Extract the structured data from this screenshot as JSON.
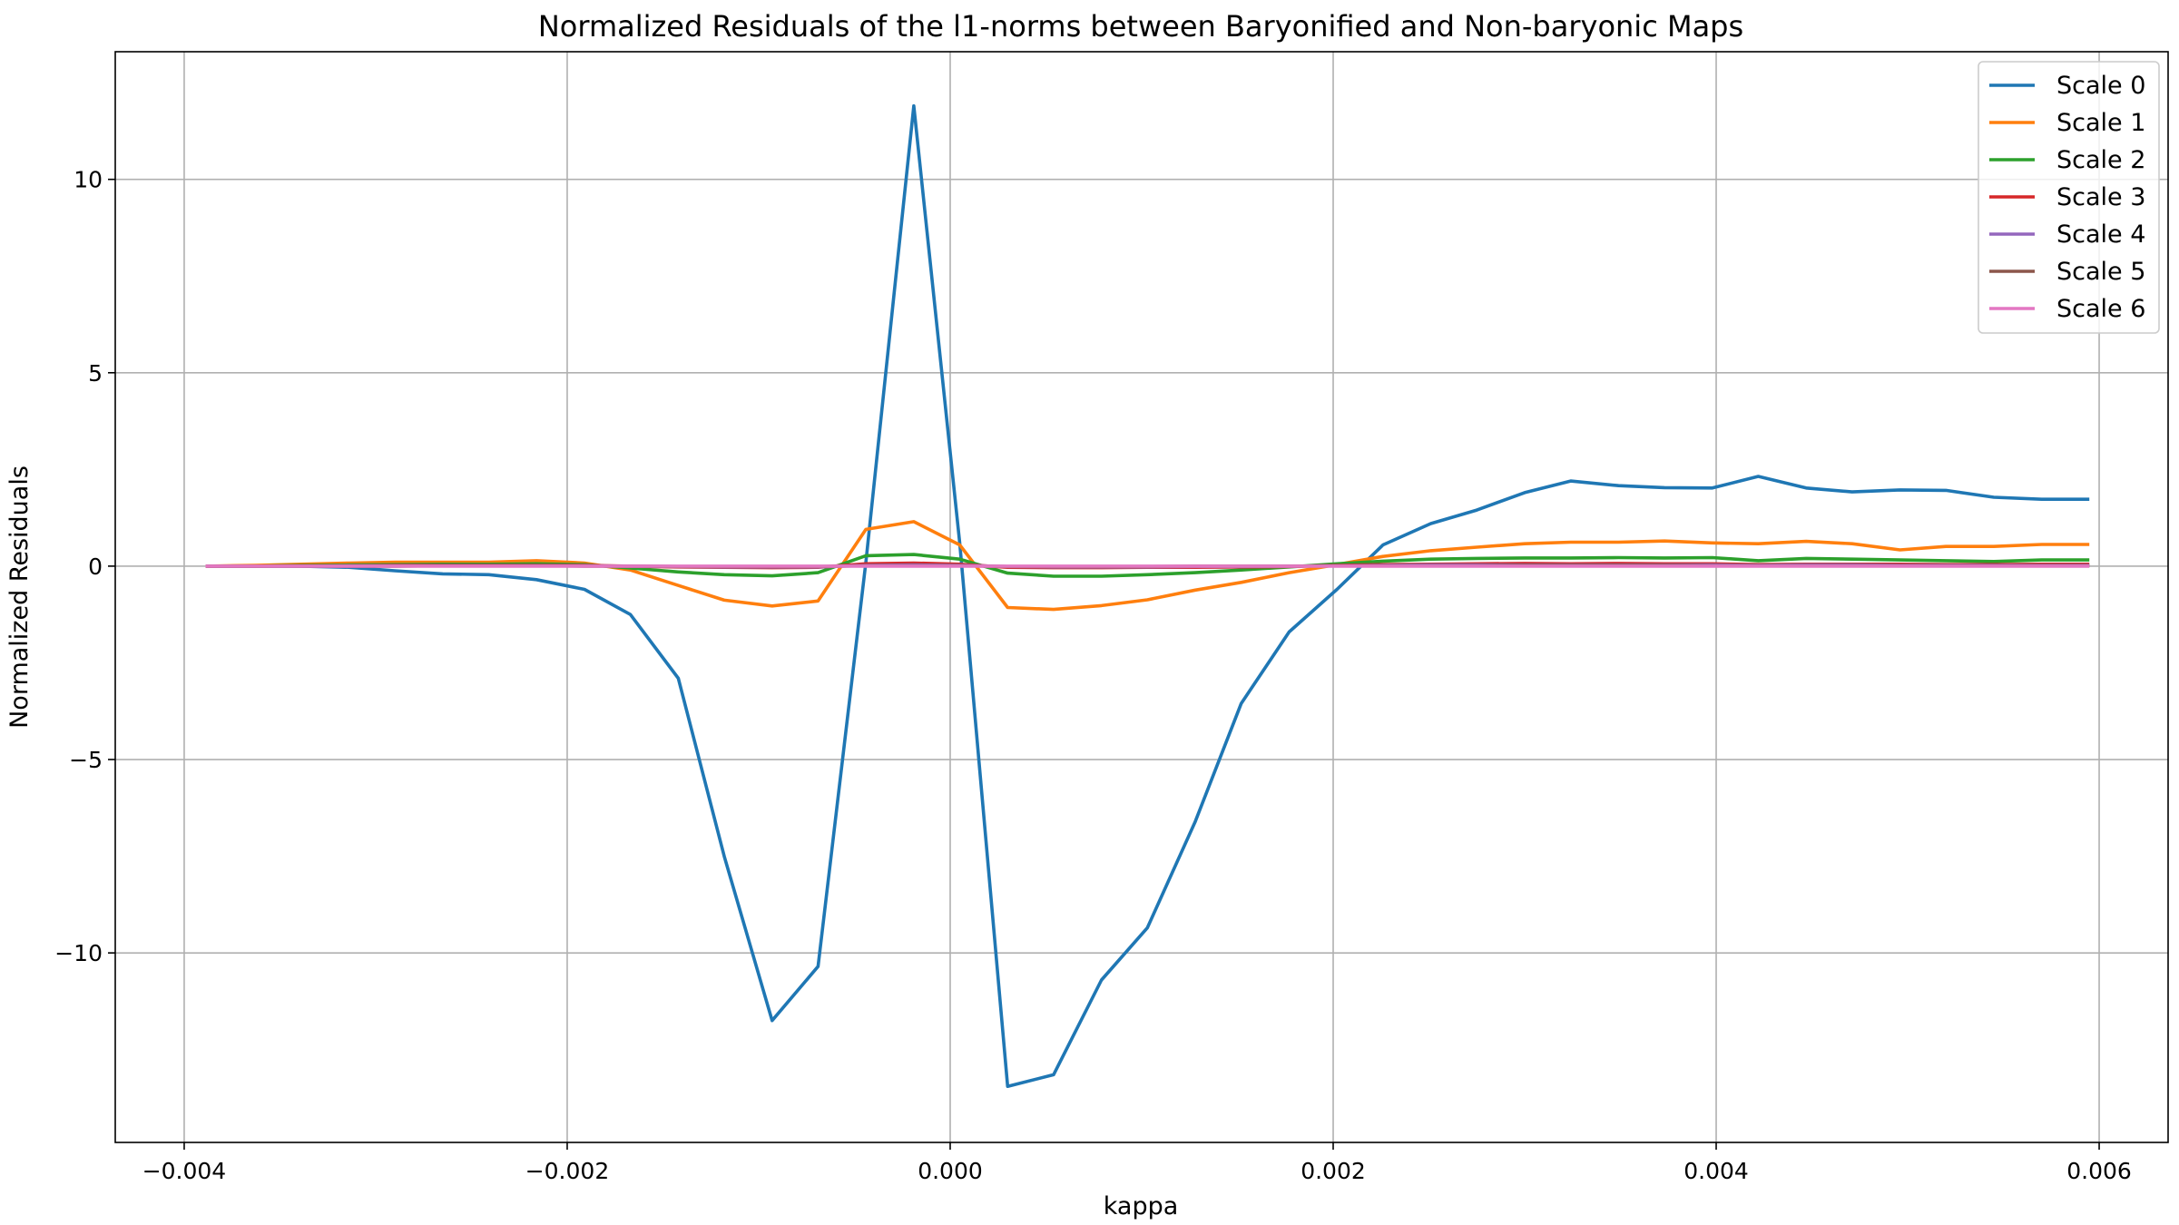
{
  "chart_data": {
    "type": "line",
    "title": "Normalized Residuals of the l1-norms between Baryonified and Non-baryonic Maps",
    "xlabel": "kappa",
    "ylabel": "Normalized Residuals",
    "xlim": [
      -0.00436,
      0.00636
    ],
    "ylim": [
      -14.9,
      13.3
    ],
    "xticks": [
      -0.004,
      -0.002,
      0.0,
      0.002,
      0.004,
      0.006
    ],
    "xtick_labels": [
      "−0.004",
      "−0.002",
      "0.000",
      "0.002",
      "0.004",
      "0.006"
    ],
    "yticks": [
      -10,
      -5,
      0,
      5,
      10
    ],
    "ytick_labels": [
      "−10",
      "−5",
      "0",
      "5",
      "10"
    ],
    "grid": true,
    "legend_position": "top-right",
    "x": [
      -0.00388,
      -0.00363,
      -0.00339,
      -0.00314,
      -0.0029,
      -0.00265,
      -0.00241,
      -0.00216,
      -0.00191,
      -0.00167,
      -0.00142,
      -0.00118,
      -0.00093,
      -0.00069,
      -0.00044,
      -0.00019,
      5e-05,
      0.0003,
      0.00054,
      0.00079,
      0.00103,
      0.00128,
      0.00152,
      0.00177,
      0.00202,
      0.00226,
      0.00251,
      0.00275,
      0.003,
      0.00324,
      0.00349,
      0.00373,
      0.00398,
      0.00422,
      0.00447,
      0.00471,
      0.00496,
      0.0052,
      0.00545,
      0.0057,
      0.00594
    ],
    "series": [
      {
        "name": "Scale 0",
        "color": "#1f77b4",
        "values": [
          0.0,
          0.0,
          0.0,
          -0.03,
          -0.12,
          -0.2,
          -0.22,
          -0.35,
          -0.6,
          -1.25,
          -2.9,
          -7.5,
          -11.75,
          -10.35,
          0.1,
          11.9,
          0.6,
          -13.45,
          -13.15,
          -10.7,
          -9.35,
          -6.6,
          -3.55,
          -1.7,
          -0.6,
          0.55,
          1.1,
          1.45,
          1.9,
          2.2,
          2.08,
          2.03,
          2.02,
          2.32,
          2.02,
          1.92,
          1.97,
          1.96,
          1.78,
          1.73,
          1.73
        ]
      },
      {
        "name": "Scale 1",
        "color": "#ff7f0e",
        "values": [
          0.0,
          0.02,
          0.05,
          0.08,
          0.1,
          0.1,
          0.1,
          0.14,
          0.08,
          -0.1,
          -0.5,
          -0.88,
          -1.03,
          -0.9,
          0.95,
          1.15,
          0.55,
          -1.07,
          -1.12,
          -1.02,
          -0.87,
          -0.62,
          -0.42,
          -0.17,
          0.04,
          0.25,
          0.4,
          0.49,
          0.58,
          0.62,
          0.62,
          0.65,
          0.6,
          0.58,
          0.64,
          0.58,
          0.42,
          0.51,
          0.51,
          0.56,
          0.56
        ]
      },
      {
        "name": "Scale 2",
        "color": "#2ca02c",
        "values": [
          0.0,
          0.0,
          0.02,
          0.03,
          0.04,
          0.05,
          0.05,
          0.06,
          0.04,
          -0.05,
          -0.15,
          -0.22,
          -0.25,
          -0.17,
          0.27,
          0.3,
          0.18,
          -0.18,
          -0.26,
          -0.26,
          -0.22,
          -0.17,
          -0.1,
          -0.02,
          0.06,
          0.13,
          0.18,
          0.2,
          0.21,
          0.21,
          0.22,
          0.21,
          0.22,
          0.14,
          0.2,
          0.18,
          0.16,
          0.14,
          0.12,
          0.16,
          0.16
        ]
      },
      {
        "name": "Scale 3",
        "color": "#d62728",
        "values": [
          0.0,
          0.0,
          0.01,
          0.01,
          0.02,
          0.02,
          0.02,
          0.02,
          0.02,
          0.0,
          -0.02,
          -0.03,
          -0.04,
          -0.03,
          0.06,
          0.08,
          0.05,
          -0.03,
          -0.04,
          -0.04,
          -0.03,
          -0.03,
          -0.02,
          -0.01,
          0.02,
          0.04,
          0.05,
          0.06,
          0.07,
          0.06,
          0.07,
          0.06,
          0.06,
          0.04,
          0.05,
          0.05,
          0.05,
          0.04,
          0.04,
          0.05,
          0.05
        ]
      },
      {
        "name": "Scale 4",
        "color": "#9467bd",
        "values": [
          0.0,
          0.0,
          0.0,
          0.01,
          0.01,
          0.01,
          0.01,
          0.01,
          0.01,
          0.0,
          -0.01,
          -0.02,
          -0.02,
          -0.02,
          0.02,
          0.03,
          0.02,
          -0.01,
          -0.02,
          -0.02,
          -0.02,
          -0.01,
          -0.01,
          0.0,
          0.01,
          0.02,
          0.03,
          0.03,
          0.03,
          0.03,
          0.03,
          0.03,
          0.03,
          0.02,
          0.03,
          0.03,
          0.02,
          0.02,
          0.02,
          0.02,
          0.02
        ]
      },
      {
        "name": "Scale 5",
        "color": "#8c564b",
        "values": [
          0.0,
          0.0,
          0.0,
          0.0,
          0.0,
          0.01,
          0.01,
          0.01,
          0.0,
          0.0,
          -0.01,
          -0.01,
          -0.01,
          -0.01,
          0.01,
          0.01,
          0.01,
          -0.01,
          -0.01,
          -0.01,
          -0.01,
          0.0,
          0.0,
          0.0,
          0.01,
          0.01,
          0.01,
          0.01,
          0.02,
          0.02,
          0.02,
          0.02,
          0.01,
          0.01,
          0.01,
          0.01,
          0.01,
          0.01,
          0.01,
          0.01,
          0.01
        ]
      },
      {
        "name": "Scale 6",
        "color": "#e377c2",
        "values": [
          0.0,
          0.0,
          0.0,
          0.0,
          0.0,
          0.0,
          0.0,
          0.0,
          0.0,
          0.0,
          0.0,
          0.0,
          0.0,
          0.0,
          0.0,
          0.0,
          0.0,
          0.0,
          0.0,
          0.0,
          0.0,
          0.0,
          0.0,
          0.0,
          0.0,
          0.0,
          0.0,
          0.0,
          0.0,
          0.0,
          0.0,
          0.0,
          0.0,
          0.0,
          0.0,
          0.0,
          0.0,
          0.0,
          0.0,
          0.0,
          0.0
        ]
      }
    ]
  }
}
